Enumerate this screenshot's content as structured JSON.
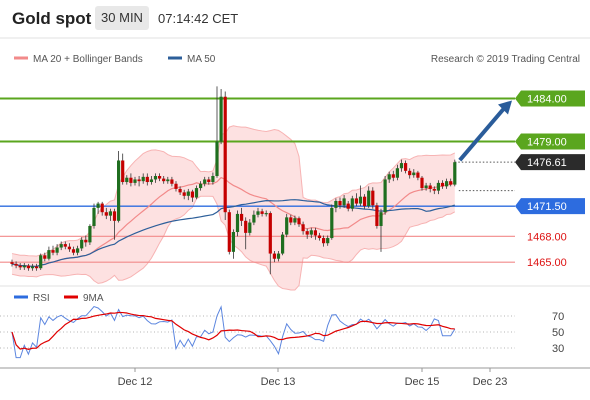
{
  "header": {
    "title": "Gold spot",
    "timeframe": "30 MIN",
    "time": "07:14:42 CET"
  },
  "legend": {
    "ma20": "MA 20 + Bollinger Bands",
    "ma50": "MA 50",
    "source": "Research © 2019 Trading Central"
  },
  "rsi_legend": {
    "rsi": "RSI",
    "ma9": "9MA"
  },
  "colors": {
    "green": "#5aa61e",
    "blue": "#2d6cdf",
    "red": "#f28a8a",
    "arrow": "#2a5c9a",
    "bb_fill": "#fde1e1",
    "candle": "#c50000"
  },
  "chart_data": {
    "type": "candlestick",
    "y_range": [
      1462.7,
      1487.3
    ],
    "x_labels": [
      "Dec 12",
      "Dec 13",
      "Dec 15",
      "Dec 23"
    ],
    "levels": [
      {
        "value": 1484.0,
        "label": "1484.00",
        "kind": "resistance"
      },
      {
        "value": 1479.0,
        "label": "1479.00",
        "kind": "resistance"
      },
      {
        "value": 1476.61,
        "label": "1476.61",
        "kind": "last"
      },
      {
        "value": 1471.5,
        "label": "1471.50",
        "kind": "pivot"
      },
      {
        "value": 1468.0,
        "label": "1468.00",
        "kind": "support"
      },
      {
        "value": 1465.0,
        "label": "1465.00",
        "kind": "support"
      }
    ],
    "projection": {
      "from": 1476.6,
      "to": 1484.0
    },
    "candles": [
      [
        1465.0,
        1464.8,
        1465.3,
        1464.5
      ],
      [
        1464.8,
        1464.6,
        1465.1,
        1464.3
      ],
      [
        1464.6,
        1464.4,
        1464.9,
        1464.1
      ],
      [
        1464.4,
        1464.6,
        1464.9,
        1464.1
      ],
      [
        1464.6,
        1464.3,
        1464.8,
        1464.0
      ],
      [
        1464.3,
        1464.5,
        1464.8,
        1464.0
      ],
      [
        1464.5,
        1464.3,
        1464.8,
        1464.0
      ],
      [
        1464.3,
        1465.8,
        1466.0,
        1464.1
      ],
      [
        1465.8,
        1465.4,
        1466.1,
        1465.1
      ],
      [
        1465.4,
        1466.4,
        1466.8,
        1465.2
      ],
      [
        1466.4,
        1466.1,
        1466.9,
        1465.8
      ],
      [
        1466.1,
        1466.7,
        1467.1,
        1465.8
      ],
      [
        1466.7,
        1467.1,
        1467.4,
        1466.4
      ],
      [
        1467.1,
        1466.8,
        1467.4,
        1466.5
      ],
      [
        1466.8,
        1466.5,
        1467.2,
        1466.2
      ],
      [
        1466.5,
        1466.1,
        1466.8,
        1465.8
      ],
      [
        1466.1,
        1466.6,
        1466.9,
        1465.8
      ],
      [
        1466.6,
        1467.6,
        1467.9,
        1466.3
      ],
      [
        1467.6,
        1467.3,
        1468.1,
        1466.8
      ],
      [
        1467.3,
        1469.2,
        1469.4,
        1467.0
      ],
      [
        1469.2,
        1471.3,
        1471.8,
        1468.9
      ],
      [
        1471.3,
        1471.8,
        1472.0,
        1470.6
      ],
      [
        1471.8,
        1470.8,
        1472.0,
        1470.4
      ],
      [
        1470.8,
        1470.4,
        1471.3,
        1470.0
      ],
      [
        1470.4,
        1470.9,
        1471.2,
        1469.8
      ],
      [
        1470.9,
        1469.8,
        1471.2,
        1467.6
      ],
      [
        1469.8,
        1476.8,
        1477.9,
        1469.6
      ],
      [
        1476.8,
        1474.3,
        1477.6,
        1474.0
      ],
      [
        1474.3,
        1474.8,
        1475.1,
        1474.0
      ],
      [
        1474.8,
        1474.2,
        1475.3,
        1473.8
      ],
      [
        1474.2,
        1474.6,
        1474.9,
        1473.9
      ],
      [
        1474.6,
        1474.4,
        1475.0,
        1473.8
      ],
      [
        1474.4,
        1474.9,
        1475.3,
        1474.1
      ],
      [
        1474.9,
        1474.3,
        1475.3,
        1473.9
      ],
      [
        1474.3,
        1474.6,
        1475.0,
        1474.0
      ],
      [
        1474.6,
        1475.0,
        1475.3,
        1474.2
      ],
      [
        1475.0,
        1474.7,
        1475.3,
        1474.4
      ],
      [
        1474.7,
        1474.4,
        1475.0,
        1474.1
      ],
      [
        1474.4,
        1474.6,
        1474.9,
        1474.1
      ],
      [
        1474.6,
        1474.1,
        1474.9,
        1473.8
      ],
      [
        1474.1,
        1473.5,
        1474.4,
        1473.2
      ],
      [
        1473.5,
        1473.1,
        1473.8,
        1472.8
      ],
      [
        1473.1,
        1472.7,
        1473.4,
        1472.3
      ],
      [
        1472.7,
        1473.2,
        1473.5,
        1472.2
      ],
      [
        1473.2,
        1472.5,
        1473.4,
        1472.0
      ],
      [
        1472.5,
        1473.6,
        1473.9,
        1472.3
      ],
      [
        1473.6,
        1474.1,
        1474.4,
        1473.3
      ],
      [
        1474.1,
        1474.6,
        1474.9,
        1473.8
      ],
      [
        1474.6,
        1474.3,
        1474.9,
        1474.0
      ],
      [
        1474.3,
        1475.0,
        1475.4,
        1474.0
      ],
      [
        1475.0,
        1479.0,
        1485.4,
        1474.8
      ],
      [
        1479.0,
        1484.2,
        1485.1,
        1478.7
      ],
      [
        1484.2,
        1470.8,
        1484.8,
        1469.9
      ],
      [
        1470.8,
        1466.2,
        1471.1,
        1465.9
      ],
      [
        1466.2,
        1468.5,
        1468.8,
        1465.4
      ],
      [
        1468.5,
        1470.6,
        1471.0,
        1468.0
      ],
      [
        1470.6,
        1469.8,
        1471.3,
        1469.2
      ],
      [
        1469.8,
        1468.4,
        1470.2,
        1466.5
      ],
      [
        1468.4,
        1469.6,
        1470.0,
        1468.1
      ],
      [
        1469.6,
        1470.5,
        1471.0,
        1469.3
      ],
      [
        1470.5,
        1470.9,
        1471.3,
        1470.2
      ],
      [
        1470.9,
        1470.6,
        1471.2,
        1470.3
      ],
      [
        1470.6,
        1470.7,
        1471.0,
        1470.3
      ],
      [
        1470.7,
        1466.0,
        1470.9,
        1463.6
      ],
      [
        1466.0,
        1465.4,
        1466.3,
        1465.0
      ],
      [
        1465.4,
        1466.0,
        1466.3,
        1465.1
      ],
      [
        1466.0,
        1468.2,
        1468.5,
        1465.8
      ],
      [
        1468.2,
        1470.2,
        1470.6,
        1467.9
      ],
      [
        1470.2,
        1469.6,
        1470.5,
        1469.3
      ],
      [
        1469.6,
        1470.1,
        1470.4,
        1469.3
      ],
      [
        1470.1,
        1469.4,
        1470.3,
        1469.1
      ],
      [
        1469.4,
        1468.6,
        1469.7,
        1468.2
      ],
      [
        1468.6,
        1468.2,
        1468.9,
        1467.7
      ],
      [
        1468.2,
        1468.7,
        1469.0,
        1467.8
      ],
      [
        1468.7,
        1468.1,
        1469.0,
        1467.6
      ],
      [
        1468.1,
        1467.8,
        1468.4,
        1467.5
      ],
      [
        1467.8,
        1467.2,
        1468.1,
        1466.8
      ],
      [
        1467.2,
        1467.8,
        1468.1,
        1466.9
      ],
      [
        1467.8,
        1471.3,
        1471.7,
        1467.6
      ],
      [
        1471.3,
        1472.1,
        1472.4,
        1470.8
      ],
      [
        1472.1,
        1471.6,
        1472.5,
        1471.2
      ],
      [
        1471.6,
        1472.4,
        1472.8,
        1471.3
      ],
      [
        1471.8,
        1471.2,
        1472.1,
        1470.9
      ],
      [
        1471.2,
        1472.4,
        1472.7,
        1470.9
      ],
      [
        1472.4,
        1471.8,
        1473.0,
        1471.5
      ],
      [
        1471.8,
        1472.6,
        1473.9,
        1471.5
      ],
      [
        1472.6,
        1471.5,
        1472.9,
        1471.2
      ],
      [
        1471.5,
        1473.3,
        1473.8,
        1471.3
      ],
      [
        1473.3,
        1471.6,
        1473.7,
        1471.2
      ],
      [
        1471.6,
        1469.2,
        1471.9,
        1468.9
      ],
      [
        1469.2,
        1470.8,
        1471.2,
        1466.2
      ],
      [
        1470.8,
        1474.6,
        1475.0,
        1470.5
      ],
      [
        1474.6,
        1475.2,
        1475.5,
        1474.2
      ],
      [
        1475.2,
        1474.8,
        1475.6,
        1474.4
      ],
      [
        1474.8,
        1475.9,
        1476.3,
        1474.5
      ],
      [
        1475.9,
        1476.5,
        1476.9,
        1475.5
      ],
      [
        1476.5,
        1475.6,
        1476.8,
        1475.3
      ],
      [
        1475.6,
        1475.1,
        1475.9,
        1474.7
      ],
      [
        1475.1,
        1475.4,
        1475.8,
        1474.8
      ],
      [
        1475.4,
        1474.8,
        1475.6,
        1474.5
      ],
      [
        1474.8,
        1473.6,
        1475.0,
        1473.3
      ],
      [
        1473.6,
        1473.9,
        1474.2,
        1473.3
      ],
      [
        1473.9,
        1473.5,
        1474.2,
        1473.1
      ],
      [
        1473.5,
        1473.3,
        1473.8,
        1472.9
      ],
      [
        1473.3,
        1474.2,
        1474.5,
        1472.9
      ],
      [
        1474.2,
        1473.8,
        1474.5,
        1473.5
      ],
      [
        1473.8,
        1474.4,
        1474.7,
        1473.5
      ],
      [
        1474.4,
        1474.0,
        1474.7,
        1473.8
      ],
      [
        1474.0,
        1476.6,
        1476.9,
        1473.8
      ]
    ],
    "rsi_axis": [
      70,
      50,
      30
    ]
  }
}
